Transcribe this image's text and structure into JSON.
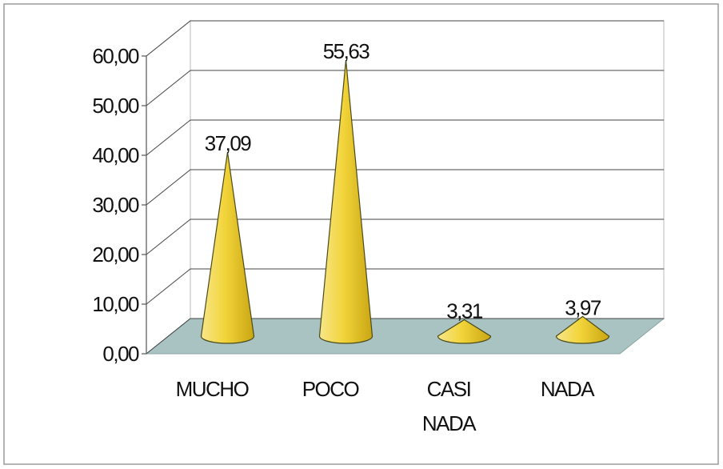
{
  "chart_data": {
    "type": "cone",
    "categories": [
      "MUCHO",
      "POCO",
      "CASI NADA",
      "NADA"
    ],
    "values": [
      37.09,
      55.63,
      3.31,
      3.97
    ],
    "value_labels": [
      "37,09",
      "55,63",
      "3,31",
      "3,97"
    ],
    "color": "#f2d43a",
    "ylim": [
      0,
      60
    ],
    "yticks": [
      {
        "value": 0,
        "label": "0,00"
      },
      {
        "value": 10,
        "label": "10,00"
      },
      {
        "value": 20,
        "label": "20,00"
      },
      {
        "value": 30,
        "label": "30,00"
      },
      {
        "value": 40,
        "label": "40,00"
      },
      {
        "value": 50,
        "label": "50,00"
      },
      {
        "value": 60,
        "label": "60,00"
      }
    ],
    "grid": true
  }
}
